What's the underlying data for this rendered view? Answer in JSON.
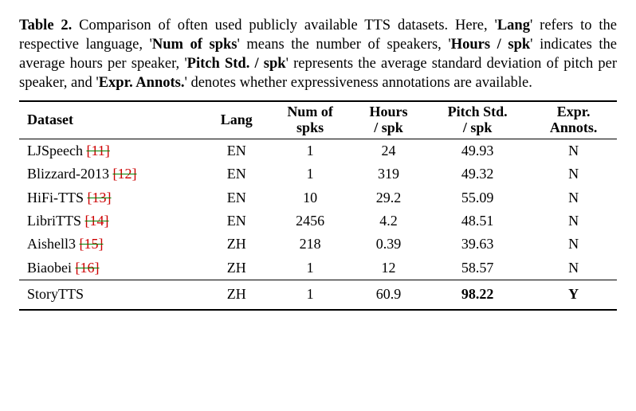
{
  "caption": {
    "label": "Table 2.",
    "body_parts": [
      " Comparison of often used publicly available TTS datasets. Here, '",
      "' refers to the respective language, '",
      "' means the number of speakers, '",
      "' indicates the average hours per speaker, '",
      "' represents the average standard deviation of pitch per speaker, and '",
      "' denotes whether expressiveness annotations are available."
    ],
    "bold_terms": [
      "Lang",
      "Num of spks",
      "Hours / spk",
      "Pitch Std. / spk",
      "Expr. Annots."
    ]
  },
  "columns": {
    "dataset": "Dataset",
    "lang": "Lang",
    "numspks_top": "Num of",
    "numspks_bot": "spks",
    "hours_top": "Hours",
    "hours_bot": "/ spk",
    "pitch_top": "Pitch Std.",
    "pitch_bot": "/ spk",
    "expr_top": "Expr.",
    "expr_bot": "Annots."
  },
  "rows": [
    {
      "name": "LJSpeech ",
      "cite": "[11]",
      "lang": "EN",
      "spks": "1",
      "hours": "24",
      "pitch": "49.93",
      "expr": "N"
    },
    {
      "name": "Blizzard-2013 ",
      "cite": "[12]",
      "lang": "EN",
      "spks": "1",
      "hours": "319",
      "pitch": "49.32",
      "expr": "N"
    },
    {
      "name": "HiFi-TTS ",
      "cite": "[13]",
      "lang": "EN",
      "spks": "10",
      "hours": "29.2",
      "pitch": "55.09",
      "expr": "N"
    },
    {
      "name": "LibriTTS ",
      "cite": "[14]",
      "lang": "EN",
      "spks": "2456",
      "hours": "4.2",
      "pitch": "48.51",
      "expr": "N"
    },
    {
      "name": "Aishell3 ",
      "cite": "[15]",
      "lang": "ZH",
      "spks": "218",
      "hours": "0.39",
      "pitch": "39.63",
      "expr": "N"
    },
    {
      "name": "Biaobei ",
      "cite": "[16]",
      "lang": "ZH",
      "spks": "1",
      "hours": "12",
      "pitch": "58.57",
      "expr": "N"
    }
  ],
  "highlight_row": {
    "name": "StoryTTS",
    "lang": "ZH",
    "spks": "1",
    "hours": "60.9",
    "pitch": "98.22",
    "expr": "Y"
  },
  "styling": {
    "cite_color": "#cc0000",
    "strike_color": "#008000",
    "font_family": "Times New Roman",
    "base_fontsize_pt": 14
  }
}
